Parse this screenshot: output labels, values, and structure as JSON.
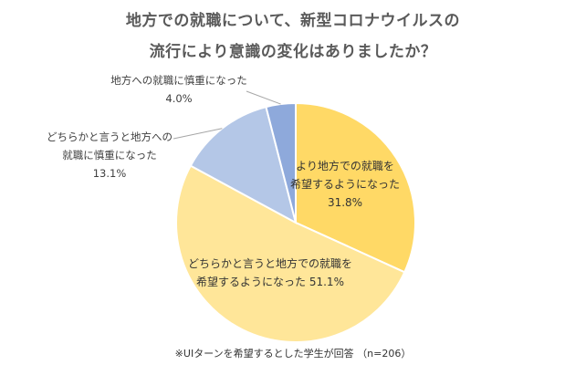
{
  "chart_data": {
    "type": "pie",
    "title_lines": [
      "地方での就職について、新型コロナウイルスの",
      "流行により意識の変化はありましたか？"
    ],
    "note": "※UIターンを希望するとした学生が回答 （n=206）",
    "start_angle_deg": 0,
    "direction": "clockwise",
    "slices": [
      {
        "label_lines": [
          "より地方での就職を",
          "希望するようになった"
        ],
        "value": 31.8,
        "value_text": "31.8%",
        "color": "#FFD966"
      },
      {
        "label_lines": [
          "どちらかと言うと地方での就職を",
          "希望するようになった"
        ],
        "value": 51.1,
        "value_text": "51.1%",
        "color": "#FFE699"
      },
      {
        "label_lines": [
          "どちらかと言うと地方への",
          "就職に慎重になった"
        ],
        "value": 13.1,
        "value_text": "13.1%",
        "color": "#B4C7E7"
      },
      {
        "label_lines": [
          "地方への就職に慎重になった"
        ],
        "value": 4.0,
        "value_text": "4.0%",
        "color": "#8EA9DB"
      }
    ]
  }
}
